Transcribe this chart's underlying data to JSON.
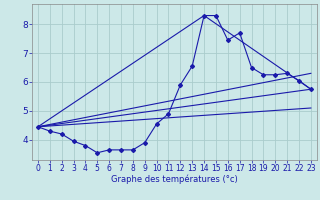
{
  "xlabel": "Graphe des températures (°c)",
  "bg_color": "#cce8e8",
  "grid_color": "#aacccc",
  "line_color": "#1a1aaa",
  "xlim": [
    -0.5,
    23.5
  ],
  "ylim": [
    3.3,
    8.7
  ],
  "yticks": [
    4,
    5,
    6,
    7,
    8
  ],
  "xticks": [
    0,
    1,
    2,
    3,
    4,
    5,
    6,
    7,
    8,
    9,
    10,
    11,
    12,
    13,
    14,
    15,
    16,
    17,
    18,
    19,
    20,
    21,
    22,
    23
  ],
  "series1_x": [
    0,
    1,
    2,
    3,
    4,
    5,
    6,
    7,
    8,
    9,
    10,
    11,
    12,
    13,
    14,
    15,
    16,
    17,
    18,
    19,
    20,
    21,
    22,
    23
  ],
  "series1_y": [
    4.45,
    4.3,
    4.2,
    3.95,
    3.8,
    3.55,
    3.65,
    3.65,
    3.65,
    3.9,
    4.55,
    4.9,
    5.9,
    6.55,
    8.3,
    8.3,
    7.45,
    7.7,
    6.5,
    6.25,
    6.25,
    6.3,
    6.05,
    5.75
  ],
  "series2_x": [
    0,
    23
  ],
  "series2_y": [
    4.45,
    5.75
  ],
  "series3_x": [
    0,
    14,
    23
  ],
  "series3_y": [
    4.45,
    8.3,
    5.75
  ],
  "series4_x": [
    0,
    23
  ],
  "series4_y": [
    4.45,
    6.3
  ],
  "series5_x": [
    0,
    23
  ],
  "series5_y": [
    4.45,
    5.1
  ]
}
